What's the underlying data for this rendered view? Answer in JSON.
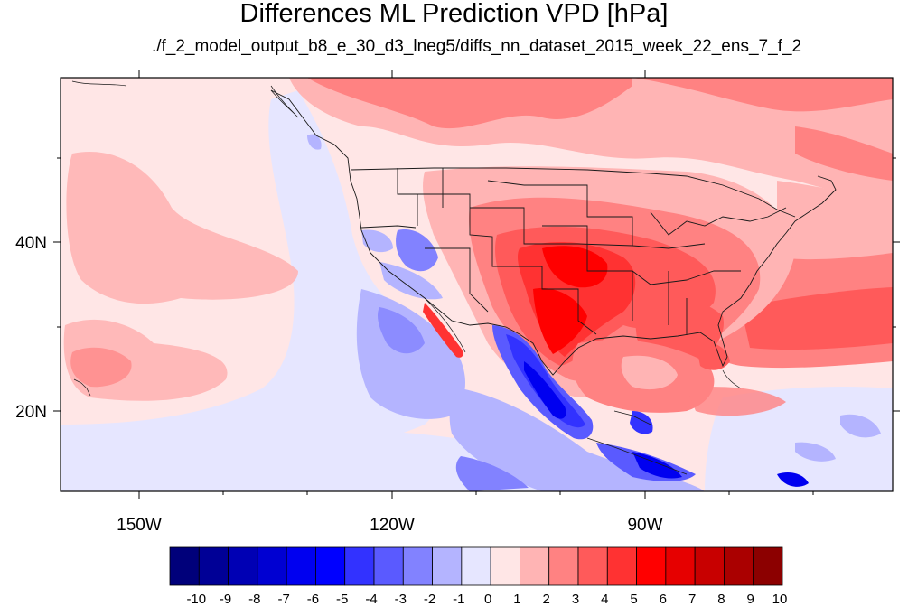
{
  "title": "Differences ML Prediction VPD [hPa]",
  "subtitle": "./f_2_model_output_b8_e_30_d3_lneg5/diffs_nn_dataset_2015_week_22_ens_7_f_2",
  "axes": {
    "lon_labels": [
      "150W",
      "120W",
      "90W"
    ],
    "lat_labels": [
      "40N",
      "20N"
    ]
  },
  "colorbar": {
    "labels": [
      "-10",
      "-9",
      "-8",
      "-7",
      "-6",
      "-5",
      "-4",
      "-3",
      "-2",
      "-1",
      "0",
      "1",
      "2",
      "3",
      "4",
      "5",
      "6",
      "7",
      "8",
      "9",
      "10"
    ],
    "colors": [
      "#00007a",
      "#000096",
      "#0000b4",
      "#0000d2",
      "#0000f0",
      "#0000ff",
      "#3232ff",
      "#5a5aff",
      "#8282ff",
      "#b4b4ff",
      "#e6e6ff",
      "#ffe6e6",
      "#ffb4b4",
      "#ff8282",
      "#ff5a5a",
      "#ff3232",
      "#ff0000",
      "#e60000",
      "#c80000",
      "#aa0000",
      "#8c0000"
    ]
  }
}
